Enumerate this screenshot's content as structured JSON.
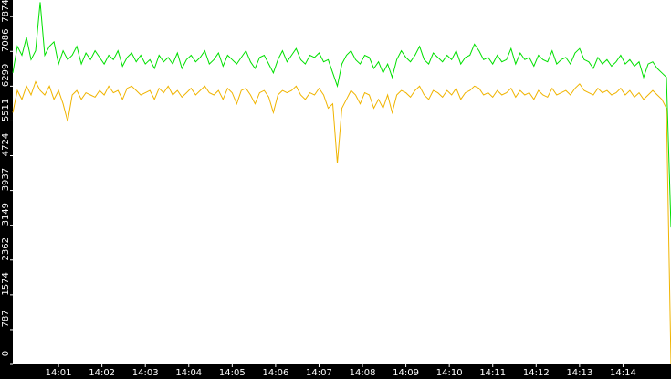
{
  "chart_data": {
    "type": "line",
    "xlim": [
      0,
      144
    ],
    "xticks": [
      {
        "value": 10,
        "label": "14:01"
      },
      {
        "value": 19.5,
        "label": "14:02"
      },
      {
        "value": 29,
        "label": "14:03"
      },
      {
        "value": 38.5,
        "label": "14:04"
      },
      {
        "value": 48,
        "label": "14:05"
      },
      {
        "value": 57.5,
        "label": "14:06"
      },
      {
        "value": 67,
        "label": "14:07"
      },
      {
        "value": 76.5,
        "label": "14:08"
      },
      {
        "value": 86,
        "label": "14:09"
      },
      {
        "value": 95.5,
        "label": "14:10"
      },
      {
        "value": 105,
        "label": "14:11"
      },
      {
        "value": 114.5,
        "label": "14:12"
      },
      {
        "value": 124,
        "label": "14:13"
      },
      {
        "value": 133.5,
        "label": "14:14"
      }
    ],
    "ylim": [
      0,
      8250
    ],
    "yticks": [
      0,
      787,
      1574,
      2362,
      3149,
      3937,
      4724,
      5511,
      6299,
      7086,
      7874
    ],
    "series": [
      {
        "color": "#00e000",
        "values": [
          6600,
          7200,
          7000,
          7400,
          6900,
          7100,
          8200,
          7000,
          7200,
          7300,
          6800,
          7100,
          6900,
          7000,
          7200,
          6800,
          7050,
          6900,
          7100,
          6950,
          6800,
          7000,
          6900,
          7100,
          6750,
          6950,
          7050,
          6850,
          7000,
          6800,
          6900,
          6700,
          7000,
          6850,
          6950,
          6800,
          7050,
          6700,
          6900,
          7000,
          6850,
          6950,
          7100,
          6800,
          6900,
          7050,
          6750,
          7000,
          6900,
          6800,
          6950,
          7100,
          6850,
          6700,
          6950,
          7000,
          6800,
          6600,
          6900,
          7100,
          6850,
          7000,
          7150,
          6900,
          6800,
          7000,
          6950,
          7050,
          6850,
          6900,
          6600,
          6300,
          6800,
          7000,
          7100,
          6900,
          6800,
          7000,
          6950,
          6700,
          6850,
          6600,
          6800,
          6500,
          6900,
          7100,
          6950,
          6850,
          7000,
          7200,
          6900,
          6800,
          7050,
          6950,
          6850,
          7000,
          6900,
          7100,
          6800,
          6950,
          7000,
          7250,
          7100,
          6900,
          6950,
          6800,
          7000,
          6850,
          6900,
          7150,
          6800,
          7050,
          6900,
          6950,
          6750,
          7000,
          6900,
          6850,
          7100,
          6800,
          6900,
          6950,
          6800,
          7050,
          7150,
          6900,
          6850,
          6700,
          6950,
          6800,
          6900,
          6750,
          6850,
          7000,
          6800,
          6900,
          6750,
          6850,
          6500,
          6800,
          6850,
          6700,
          6600,
          6500,
          3100
        ]
      },
      {
        "color": "#f0b400",
        "values": [
          5700,
          6200,
          6000,
          6300,
          6100,
          6400,
          6200,
          6100,
          6300,
          6000,
          6200,
          5900,
          5500,
          6100,
          6200,
          6000,
          6150,
          6100,
          6050,
          6200,
          6100,
          6300,
          6150,
          6200,
          6000,
          6250,
          6300,
          6200,
          6100,
          6150,
          6200,
          6000,
          6250,
          6150,
          6300,
          6100,
          6200,
          6050,
          6150,
          6250,
          6100,
          6200,
          6300,
          6150,
          6100,
          6200,
          6000,
          6250,
          6150,
          5900,
          6200,
          6250,
          6100,
          5900,
          6150,
          6200,
          6050,
          5700,
          6100,
          6200,
          6150,
          6200,
          6300,
          6100,
          6000,
          6150,
          6100,
          6250,
          6100,
          5800,
          5900,
          4550,
          5800,
          6000,
          6200,
          6100,
          5900,
          6150,
          6100,
          5800,
          6000,
          5800,
          6100,
          5700,
          6100,
          6200,
          6150,
          6050,
          6200,
          6300,
          6100,
          6000,
          6200,
          6150,
          6050,
          6200,
          6100,
          6250,
          6000,
          6150,
          6200,
          6300,
          6250,
          6100,
          6150,
          6050,
          6200,
          6100,
          6150,
          6250,
          6050,
          6200,
          6100,
          6150,
          6000,
          6200,
          6100,
          6050,
          6250,
          6100,
          6150,
          6200,
          6100,
          6250,
          6350,
          6200,
          6150,
          6100,
          6250,
          6150,
          6200,
          6100,
          6150,
          6250,
          6100,
          6200,
          6050,
          6150,
          6000,
          6100,
          6200,
          6100,
          6000,
          5800,
          0
        ]
      }
    ]
  }
}
